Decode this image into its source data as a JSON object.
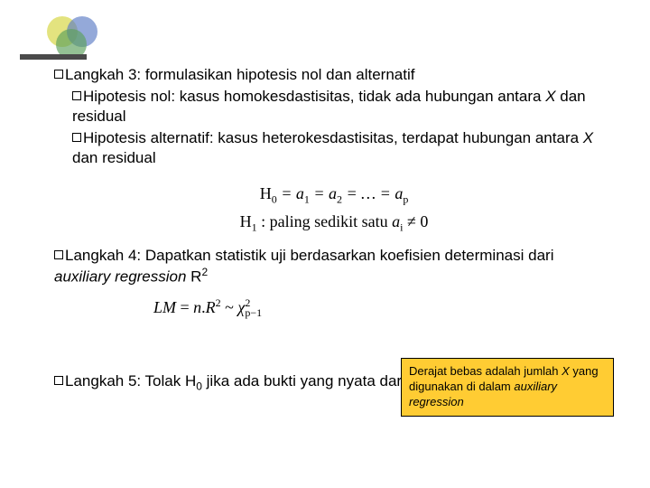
{
  "logo": {
    "circle_yellow": "#d4d43a",
    "circle_blue": "#5a7bc4",
    "circle_green": "#5aa05a",
    "bar_color": "#4a4a4a"
  },
  "step3": {
    "label": "Langkah 3: formulasikan hipotesis nol dan alternatif",
    "sub1_prefix": "Hipotesis nol: kasus homokesdastisitas, tidak ada hubungan antara ",
    "sub1_var": "X",
    "sub1_suffix": " dan residual",
    "sub2_prefix": "Hipotesis alternatif: kasus heterokesdastisitas, terdapat hubungan antara ",
    "sub2_var": "X",
    "sub2_suffix": " dan residual"
  },
  "formula1": {
    "line1": "H₀ = a₁ = a₂ = … = aₚ",
    "line2_lhs": "H₁",
    "line2_mid": " : paling sedikit satu ",
    "line2_var": "aᵢ",
    "line2_rhs": " ≠ 0"
  },
  "step4": {
    "prefix": "Langkah 4: Dapatkan statistik uji berdasarkan koefisien determinasi dari ",
    "italic": "auxiliary regression",
    "suffix": " R",
    "exp": "2"
  },
  "formula2": {
    "text": "LM = n.R² ~ χ²ₚ₋₁"
  },
  "note": {
    "prefix": "Derajat bebas adalah jumlah ",
    "var": "X",
    "mid": " yang digunakan di dalam ",
    "italic": "auxiliary regression"
  },
  "step5": {
    "prefix": "Langkah 5: Tolak H",
    "sub": "0",
    "suffix": " jika ada bukti yang nyata dari statistik uji"
  },
  "colors": {
    "note_bg": "#ffcc33",
    "text": "#000000",
    "bg": "#ffffff"
  }
}
